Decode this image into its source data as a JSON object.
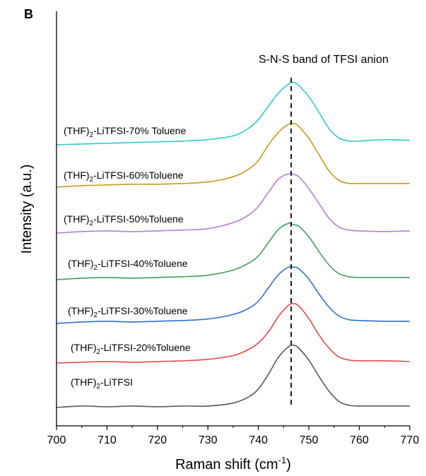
{
  "chart_data": {
    "type": "line",
    "panel_label": "B",
    "annotation": "S-N-S band of TFSI anion",
    "reference_line_x": 746.5,
    "xlabel": {
      "prefix": "Raman shift (cm",
      "sup": "-1",
      "suffix": ")"
    },
    "ylabel": "Intensity (a.u.)",
    "xlim": [
      700,
      770
    ],
    "xticks": [
      "700",
      "710",
      "720",
      "730",
      "740",
      "750",
      "760",
      "770"
    ],
    "y_ticks_shown": false,
    "grid": false,
    "legend": "labels above each trace",
    "series": [
      {
        "name_base": "(THF)",
        "name_sub": "2",
        "name_rest": "-LiTFSI",
        "color": "#595959",
        "x": [
          700,
          705,
          710,
          715,
          720,
          725,
          730,
          735,
          738,
          740,
          742,
          744,
          746,
          747,
          748,
          750,
          752,
          754,
          756,
          758,
          760,
          765,
          770
        ],
        "y": [
          0.0,
          0.02,
          0.01,
          0.02,
          0.01,
          0.02,
          0.02,
          0.06,
          0.14,
          0.25,
          0.45,
          0.68,
          0.82,
          0.84,
          0.8,
          0.64,
          0.42,
          0.22,
          0.08,
          0.03,
          0.02,
          0.02,
          0.02
        ]
      },
      {
        "name_base": "(THF)",
        "name_sub": "2",
        "name_rest": "-LiTFSI-20%Toluene",
        "color": "#e8474a",
        "x": [
          700,
          705,
          710,
          715,
          720,
          725,
          730,
          735,
          738,
          740,
          742,
          744,
          746,
          747,
          748,
          750,
          752,
          754,
          756,
          758,
          760,
          765,
          770
        ],
        "y": [
          0.0,
          0.01,
          0.02,
          0.01,
          0.02,
          0.03,
          0.05,
          0.1,
          0.18,
          0.27,
          0.42,
          0.63,
          0.78,
          0.8,
          0.77,
          0.6,
          0.38,
          0.2,
          0.08,
          0.04,
          0.03,
          0.03,
          0.02
        ]
      },
      {
        "name_base": "(THF)",
        "name_sub": "2",
        "name_rest": "-LiTFSI-30%Toluene",
        "color": "#2f6fd6",
        "x": [
          700,
          705,
          710,
          715,
          720,
          725,
          730,
          735,
          738,
          740,
          742,
          744,
          746,
          747,
          748,
          750,
          752,
          754,
          756,
          758,
          760,
          765,
          770
        ],
        "y": [
          0.0,
          0.02,
          0.03,
          0.02,
          0.03,
          0.04,
          0.06,
          0.12,
          0.2,
          0.3,
          0.48,
          0.66,
          0.76,
          0.76,
          0.74,
          0.6,
          0.4,
          0.22,
          0.1,
          0.05,
          0.04,
          0.03,
          0.03
        ]
      },
      {
        "name_base": "(THF)",
        "name_sub": "2",
        "name_rest": "-LiTFSI-40%Toluene",
        "color": "#3e9e5f",
        "x": [
          700,
          705,
          710,
          715,
          720,
          725,
          730,
          735,
          738,
          740,
          742,
          744,
          746,
          747,
          748,
          750,
          752,
          754,
          756,
          758,
          760,
          765,
          770
        ],
        "y": [
          0.0,
          0.02,
          0.03,
          0.02,
          0.03,
          0.04,
          0.06,
          0.13,
          0.22,
          0.32,
          0.5,
          0.68,
          0.76,
          0.74,
          0.72,
          0.58,
          0.38,
          0.2,
          0.08,
          0.04,
          0.03,
          0.03,
          0.03
        ]
      },
      {
        "name_base": "(THF)",
        "name_sub": "2",
        "name_rest": "-LiTFSI-50%Toluene",
        "color": "#b27ee0",
        "x": [
          700,
          705,
          710,
          715,
          720,
          725,
          730,
          735,
          738,
          740,
          742,
          744,
          746,
          747,
          748,
          750,
          752,
          754,
          756,
          758,
          760,
          765,
          770
        ],
        "y": [
          0.0,
          0.02,
          0.03,
          0.02,
          0.03,
          0.04,
          0.06,
          0.14,
          0.24,
          0.36,
          0.55,
          0.73,
          0.8,
          0.79,
          0.76,
          0.6,
          0.4,
          0.2,
          0.08,
          0.04,
          0.03,
          0.02,
          0.03
        ]
      },
      {
        "name_base": "(THF)",
        "name_sub": "2",
        "name_rest": "-LiTFSI-60%Toluene",
        "color": "#c89a1c",
        "x": [
          700,
          705,
          710,
          715,
          720,
          725,
          730,
          735,
          738,
          740,
          742,
          744,
          746,
          747,
          748,
          750,
          752,
          754,
          756,
          758,
          760,
          765,
          770
        ],
        "y": [
          0.0,
          0.02,
          0.03,
          0.04,
          0.04,
          0.05,
          0.07,
          0.14,
          0.24,
          0.36,
          0.57,
          0.74,
          0.85,
          0.86,
          0.82,
          0.66,
          0.44,
          0.22,
          0.09,
          0.05,
          0.05,
          0.05,
          0.05
        ]
      },
      {
        "name_base": "(THF)",
        "name_sub": "2",
        "name_rest": "-LiTFSI-70% Toluene",
        "color": "#2ec9cc",
        "x": [
          700,
          705,
          710,
          715,
          720,
          725,
          730,
          735,
          738,
          740,
          742,
          744,
          746,
          747,
          748,
          750,
          752,
          754,
          756,
          758,
          760,
          765,
          770
        ],
        "y": [
          0.0,
          0.01,
          0.02,
          0.03,
          0.04,
          0.05,
          0.07,
          0.12,
          0.22,
          0.34,
          0.52,
          0.7,
          0.82,
          0.84,
          0.8,
          0.65,
          0.44,
          0.22,
          0.09,
          0.05,
          0.05,
          0.07,
          0.06
        ]
      }
    ]
  }
}
